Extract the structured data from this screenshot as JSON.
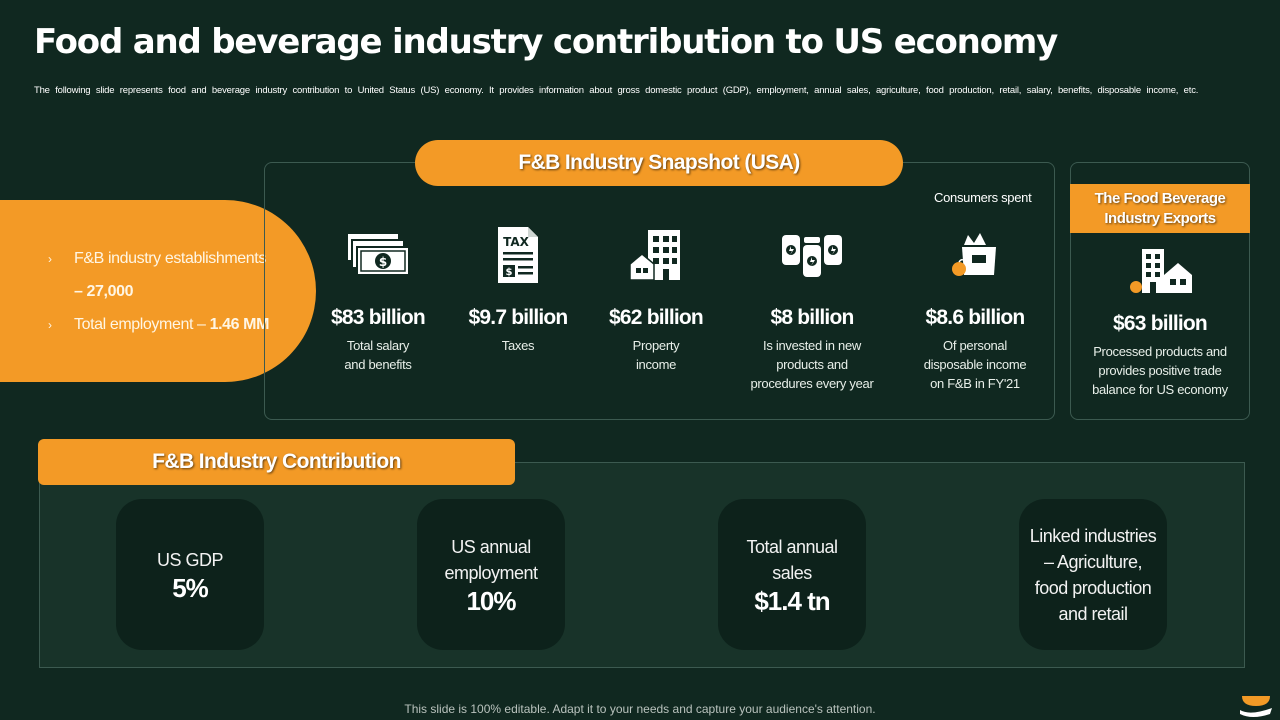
{
  "title": "Food and beverage industry contribution to US economy",
  "subtitle": "The following slide represents food and beverage industry contribution to United Status (US) economy. It provides information about gross domestic product (GDP), employment, annual sales, agriculture, food production, retail, salary, benefits, disposable income, etc.",
  "left_summary": {
    "items": [
      {
        "bullet": "›",
        "text_a": "F&B industry establishments",
        "text_b": "– 27,000"
      },
      {
        "bullet": "›",
        "text_a": "Total employment – ",
        "text_b": "1.46 MM"
      }
    ]
  },
  "snapshot": {
    "header": "F&B Industry Snapshot (USA)",
    "note": "Consumers spent",
    "stats": [
      {
        "icon": "money-stack-icon",
        "value": "$83 billion",
        "desc_lines": [
          "Total salary",
          "and benefits"
        ]
      },
      {
        "icon": "tax-document-icon",
        "value": "$9.7 billion",
        "desc_lines": [
          "Taxes"
        ]
      },
      {
        "icon": "buildings-icon",
        "value": "$62 billion",
        "desc_lines": [
          "Property",
          "income"
        ]
      },
      {
        "icon": "cans-icon",
        "value": "$8 billion",
        "desc_lines": [
          "Is invested in new",
          "products and",
          "procedures every year"
        ]
      },
      {
        "icon": "grocery-bag-icon",
        "value": "$8.6 billion",
        "desc_lines": [
          "Of personal",
          "disposable income",
          "on F&B in FY'21"
        ]
      }
    ]
  },
  "exports": {
    "header_lines": [
      "The Food Beverage",
      "Industry Exports"
    ],
    "icon": "export-buildings-icon",
    "value": "$63 billion",
    "desc_lines": [
      "Processed products and",
      "provides positive trade",
      "balance for US economy"
    ]
  },
  "contribution": {
    "header": "F&B Industry Contribution",
    "cards": [
      {
        "label_lines": [
          "US GDP"
        ],
        "big": "5%"
      },
      {
        "label_lines": [
          "US annual",
          "employment"
        ],
        "big": "10%"
      },
      {
        "label_lines": [
          "Total annual",
          "sales"
        ],
        "big": "$1.4 tn"
      },
      {
        "label_lines": [
          "Linked industries",
          "– Agriculture,",
          "food production",
          "and retail"
        ],
        "big": ""
      }
    ]
  },
  "footer": "This slide is 100% editable. Adapt it to your needs and capture your audience's attention.",
  "colors": {
    "background": "#102820",
    "accent": "#f39a26",
    "panel": "#183329",
    "card": "#0d221b"
  }
}
